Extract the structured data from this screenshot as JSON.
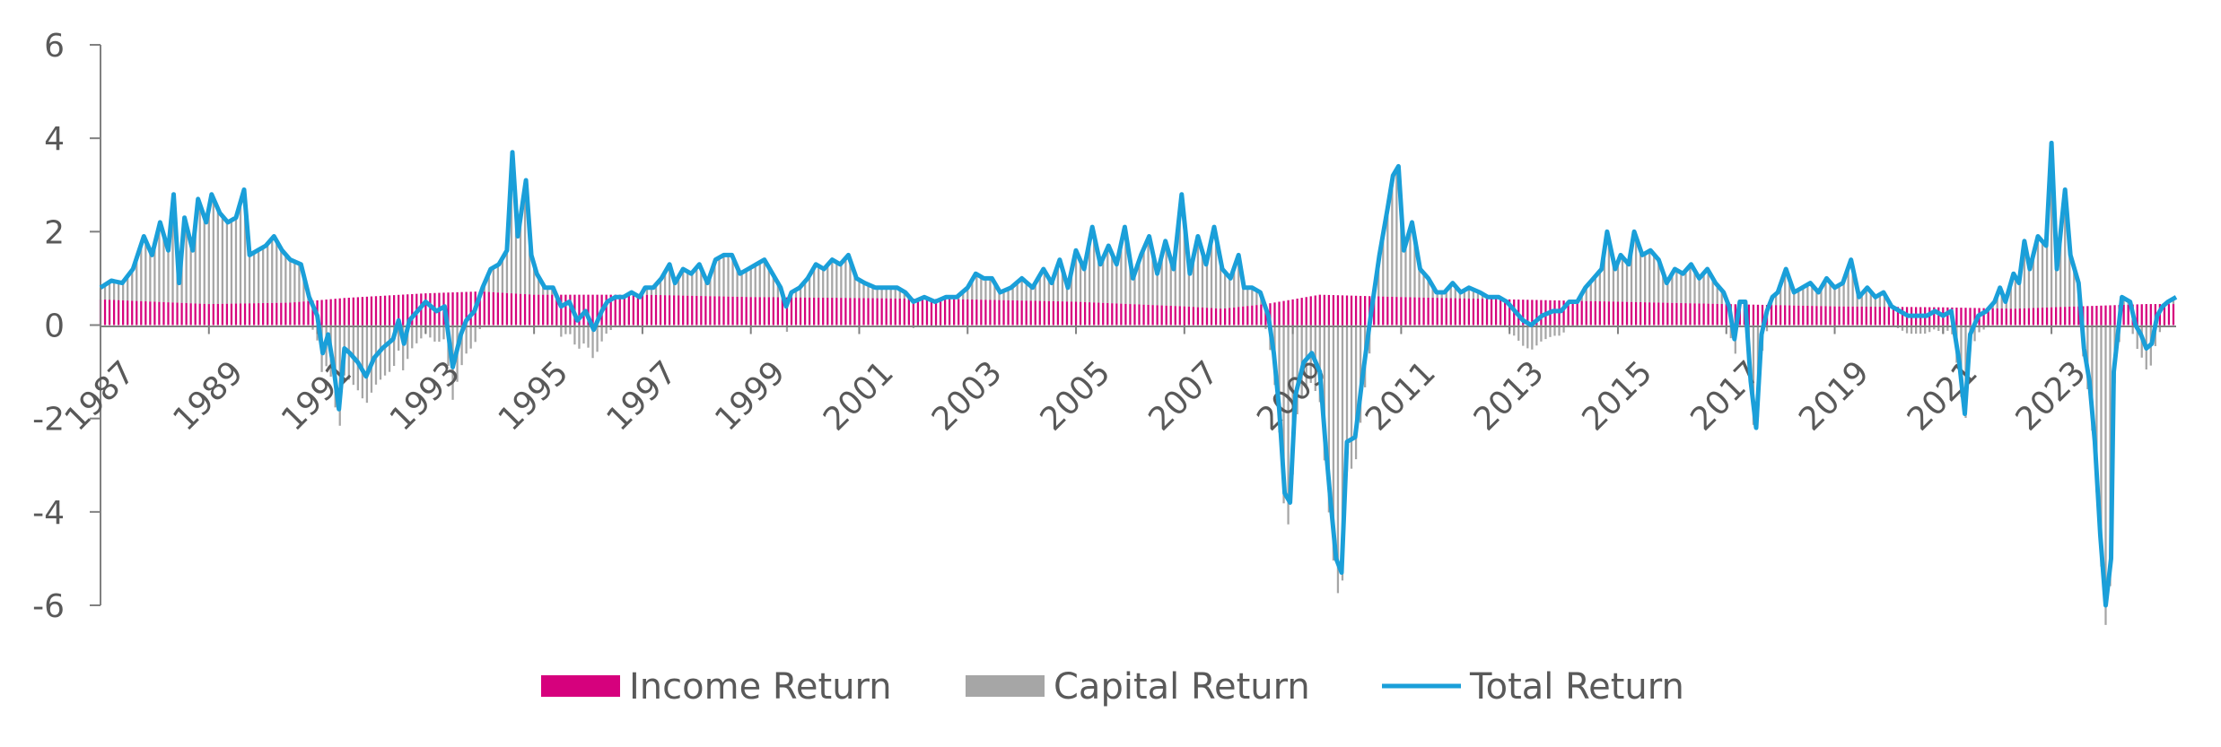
{
  "colors": {
    "income": "#d6017d",
    "capital": "#a6a6a6",
    "total": "#1a9fd9",
    "axis": "#808080",
    "text": "#595959"
  },
  "legend": {
    "income_label": "Income Return",
    "capital_label": "Capital Return",
    "total_label": "Total Return"
  },
  "chart_data": {
    "type": "bar",
    "subtype": "stacked bar (income + capital) with total return line, monthly",
    "title": "",
    "xlabel": "",
    "ylabel": "",
    "ylim": [
      -6,
      6
    ],
    "yticks": [
      "6",
      "4",
      "2",
      "0",
      "-2",
      "-4",
      "-6"
    ],
    "x_tick_labels": [
      "1987",
      "1989",
      "1991",
      "1993",
      "1995",
      "1997",
      "1999",
      "2001",
      "2003",
      "2005",
      "2007",
      "2009",
      "2011",
      "2013",
      "2015",
      "2017",
      "2019",
      "2021",
      "2023"
    ],
    "x_range_years": [
      1987,
      2024.75
    ],
    "grid": false,
    "legend_position": "bottom",
    "series": [
      {
        "name": "Income Return",
        "kind": "bar",
        "points": [
          [
            1987.0,
            0.55
          ],
          [
            1989.0,
            0.45
          ],
          [
            1990.5,
            0.48
          ],
          [
            1991.5,
            0.58
          ],
          [
            1993.0,
            0.68
          ],
          [
            1994.0,
            0.72
          ],
          [
            1995.0,
            0.65
          ],
          [
            1997.0,
            0.65
          ],
          [
            1999.0,
            0.6
          ],
          [
            2001.0,
            0.58
          ],
          [
            2003.0,
            0.55
          ],
          [
            2005.0,
            0.5
          ],
          [
            2007.0,
            0.4
          ],
          [
            2007.7,
            0.35
          ],
          [
            2008.5,
            0.45
          ],
          [
            2009.5,
            0.65
          ],
          [
            2011.0,
            0.6
          ],
          [
            2013.0,
            0.55
          ],
          [
            2015.0,
            0.5
          ],
          [
            2017.0,
            0.45
          ],
          [
            2019.0,
            0.4
          ],
          [
            2021.0,
            0.38
          ],
          [
            2022.3,
            0.35
          ],
          [
            2023.0,
            0.38
          ],
          [
            2024.75,
            0.45
          ]
        ]
      },
      {
        "name": "Capital Return",
        "kind": "bar",
        "derived_as": "Total Return minus Income Return"
      },
      {
        "name": "Total Return",
        "kind": "line",
        "points": [
          [
            1987.0,
            0.8
          ],
          [
            1987.2,
            0.95
          ],
          [
            1987.4,
            0.9
          ],
          [
            1987.6,
            1.2
          ],
          [
            1987.8,
            1.9
          ],
          [
            1987.95,
            1.5
          ],
          [
            1988.1,
            2.2
          ],
          [
            1988.25,
            1.6
          ],
          [
            1988.35,
            2.8
          ],
          [
            1988.45,
            0.9
          ],
          [
            1988.55,
            2.3
          ],
          [
            1988.7,
            1.6
          ],
          [
            1988.8,
            2.7
          ],
          [
            1988.95,
            2.2
          ],
          [
            1989.05,
            2.8
          ],
          [
            1989.2,
            2.4
          ],
          [
            1989.35,
            2.2
          ],
          [
            1989.5,
            2.3
          ],
          [
            1989.65,
            2.9
          ],
          [
            1989.75,
            1.5
          ],
          [
            1989.9,
            1.6
          ],
          [
            1990.05,
            1.7
          ],
          [
            1990.2,
            1.9
          ],
          [
            1990.35,
            1.6
          ],
          [
            1990.5,
            1.4
          ],
          [
            1990.7,
            1.3
          ],
          [
            1990.85,
            0.6
          ],
          [
            1991.0,
            0.2
          ],
          [
            1991.1,
            -0.6
          ],
          [
            1991.2,
            -0.2
          ],
          [
            1991.3,
            -0.9
          ],
          [
            1991.4,
            -1.8
          ],
          [
            1991.5,
            -0.5
          ],
          [
            1991.6,
            -0.6
          ],
          [
            1991.75,
            -0.8
          ],
          [
            1991.9,
            -1.1
          ],
          [
            1992.05,
            -0.7
          ],
          [
            1992.2,
            -0.5
          ],
          [
            1992.4,
            -0.3
          ],
          [
            1992.5,
            0.1
          ],
          [
            1992.6,
            -0.4
          ],
          [
            1992.7,
            0.1
          ],
          [
            1992.85,
            0.3
          ],
          [
            1993.0,
            0.5
          ],
          [
            1993.1,
            0.4
          ],
          [
            1993.2,
            0.3
          ],
          [
            1993.35,
            0.4
          ],
          [
            1993.5,
            -0.9
          ],
          [
            1993.65,
            -0.2
          ],
          [
            1993.75,
            0.1
          ],
          [
            1993.9,
            0.3
          ],
          [
            1994.05,
            0.8
          ],
          [
            1994.2,
            1.2
          ],
          [
            1994.35,
            1.3
          ],
          [
            1994.5,
            1.6
          ],
          [
            1994.6,
            3.7
          ],
          [
            1994.7,
            1.9
          ],
          [
            1994.85,
            3.1
          ],
          [
            1994.95,
            1.5
          ],
          [
            1995.05,
            1.1
          ],
          [
            1995.2,
            0.8
          ],
          [
            1995.35,
            0.8
          ],
          [
            1995.5,
            0.4
          ],
          [
            1995.65,
            0.5
          ],
          [
            1995.8,
            0.1
          ],
          [
            1995.95,
            0.3
          ],
          [
            1996.1,
            -0.1
          ],
          [
            1996.25,
            0.3
          ],
          [
            1996.35,
            0.5
          ],
          [
            1996.5,
            0.6
          ],
          [
            1996.65,
            0.6
          ],
          [
            1996.8,
            0.7
          ],
          [
            1996.95,
            0.6
          ],
          [
            1997.05,
            0.8
          ],
          [
            1997.2,
            0.8
          ],
          [
            1997.35,
            1.0
          ],
          [
            1997.5,
            1.3
          ],
          [
            1997.6,
            0.9
          ],
          [
            1997.75,
            1.2
          ],
          [
            1997.9,
            1.1
          ],
          [
            1998.05,
            1.3
          ],
          [
            1998.2,
            0.9
          ],
          [
            1998.35,
            1.4
          ],
          [
            1998.5,
            1.5
          ],
          [
            1998.65,
            1.5
          ],
          [
            1998.8,
            1.1
          ],
          [
            1998.95,
            1.2
          ],
          [
            1999.1,
            1.3
          ],
          [
            1999.25,
            1.4
          ],
          [
            1999.4,
            1.1
          ],
          [
            1999.55,
            0.8
          ],
          [
            1999.65,
            0.4
          ],
          [
            1999.75,
            0.7
          ],
          [
            1999.9,
            0.8
          ],
          [
            2000.05,
            1.0
          ],
          [
            2000.2,
            1.3
          ],
          [
            2000.35,
            1.2
          ],
          [
            2000.5,
            1.4
          ],
          [
            2000.65,
            1.3
          ],
          [
            2000.8,
            1.5
          ],
          [
            2000.95,
            1.0
          ],
          [
            2001.1,
            0.9
          ],
          [
            2001.3,
            0.8
          ],
          [
            2001.5,
            0.8
          ],
          [
            2001.7,
            0.8
          ],
          [
            2001.85,
            0.7
          ],
          [
            2002.0,
            0.5
          ],
          [
            2002.2,
            0.6
          ],
          [
            2002.4,
            0.5
          ],
          [
            2002.6,
            0.6
          ],
          [
            2002.8,
            0.6
          ],
          [
            2003.0,
            0.8
          ],
          [
            2003.15,
            1.1
          ],
          [
            2003.3,
            1.0
          ],
          [
            2003.45,
            1.0
          ],
          [
            2003.6,
            0.7
          ],
          [
            2003.8,
            0.8
          ],
          [
            2004.0,
            1.0
          ],
          [
            2004.2,
            0.8
          ],
          [
            2004.4,
            1.2
          ],
          [
            2004.55,
            0.9
          ],
          [
            2004.7,
            1.4
          ],
          [
            2004.85,
            0.8
          ],
          [
            2005.0,
            1.6
          ],
          [
            2005.15,
            1.2
          ],
          [
            2005.3,
            2.1
          ],
          [
            2005.45,
            1.3
          ],
          [
            2005.6,
            1.7
          ],
          [
            2005.75,
            1.3
          ],
          [
            2005.9,
            2.1
          ],
          [
            2006.05,
            1.0
          ],
          [
            2006.2,
            1.5
          ],
          [
            2006.35,
            1.9
          ],
          [
            2006.5,
            1.1
          ],
          [
            2006.65,
            1.8
          ],
          [
            2006.8,
            1.2
          ],
          [
            2006.95,
            2.8
          ],
          [
            2007.1,
            1.1
          ],
          [
            2007.25,
            1.9
          ],
          [
            2007.4,
            1.3
          ],
          [
            2007.55,
            2.1
          ],
          [
            2007.7,
            1.2
          ],
          [
            2007.85,
            1.0
          ],
          [
            2008.0,
            1.5
          ],
          [
            2008.1,
            0.8
          ],
          [
            2008.25,
            0.8
          ],
          [
            2008.4,
            0.7
          ],
          [
            2008.55,
            0.2
          ],
          [
            2008.65,
            -0.6
          ],
          [
            2008.75,
            -1.8
          ],
          [
            2008.85,
            -3.6
          ],
          [
            2008.95,
            -3.8
          ],
          [
            2009.05,
            -1.5
          ],
          [
            2009.2,
            -0.8
          ],
          [
            2009.35,
            -0.6
          ],
          [
            2009.5,
            -1.0
          ],
          [
            2009.6,
            -2.5
          ],
          [
            2009.7,
            -3.8
          ],
          [
            2009.8,
            -5.0
          ],
          [
            2009.9,
            -5.3
          ],
          [
            2010.0,
            -2.5
          ],
          [
            2010.15,
            -2.4
          ],
          [
            2010.3,
            -1.0
          ],
          [
            2010.45,
            0.3
          ],
          [
            2010.6,
            1.5
          ],
          [
            2010.75,
            2.5
          ],
          [
            2010.85,
            3.2
          ],
          [
            2010.95,
            3.4
          ],
          [
            2011.05,
            1.6
          ],
          [
            2011.2,
            2.2
          ],
          [
            2011.35,
            1.2
          ],
          [
            2011.5,
            1.0
          ],
          [
            2011.65,
            0.7
          ],
          [
            2011.8,
            0.7
          ],
          [
            2011.95,
            0.9
          ],
          [
            2012.1,
            0.7
          ],
          [
            2012.25,
            0.8
          ],
          [
            2012.45,
            0.7
          ],
          [
            2012.6,
            0.6
          ],
          [
            2012.8,
            0.6
          ],
          [
            2012.95,
            0.5
          ],
          [
            2013.1,
            0.3
          ],
          [
            2013.25,
            0.1
          ],
          [
            2013.4,
            0.0
          ],
          [
            2013.6,
            0.2
          ],
          [
            2013.8,
            0.3
          ],
          [
            2013.95,
            0.3
          ],
          [
            2014.1,
            0.5
          ],
          [
            2014.25,
            0.5
          ],
          [
            2014.4,
            0.8
          ],
          [
            2014.55,
            1.0
          ],
          [
            2014.7,
            1.2
          ],
          [
            2014.8,
            2.0
          ],
          [
            2014.95,
            1.2
          ],
          [
            2015.05,
            1.5
          ],
          [
            2015.2,
            1.3
          ],
          [
            2015.3,
            2.0
          ],
          [
            2015.45,
            1.5
          ],
          [
            2015.6,
            1.6
          ],
          [
            2015.75,
            1.4
          ],
          [
            2015.9,
            0.9
          ],
          [
            2016.05,
            1.2
          ],
          [
            2016.2,
            1.1
          ],
          [
            2016.35,
            1.3
          ],
          [
            2016.5,
            1.0
          ],
          [
            2016.65,
            1.2
          ],
          [
            2016.8,
            0.9
          ],
          [
            2016.95,
            0.7
          ],
          [
            2017.05,
            0.4
          ],
          [
            2017.15,
            -0.3
          ],
          [
            2017.25,
            0.5
          ],
          [
            2017.35,
            0.5
          ],
          [
            2017.45,
            -1.2
          ],
          [
            2017.55,
            -2.2
          ],
          [
            2017.65,
            -0.2
          ],
          [
            2017.75,
            0.3
          ],
          [
            2017.85,
            0.6
          ],
          [
            2017.95,
            0.7
          ],
          [
            2018.1,
            1.2
          ],
          [
            2018.25,
            0.7
          ],
          [
            2018.4,
            0.8
          ],
          [
            2018.55,
            0.9
          ],
          [
            2018.7,
            0.7
          ],
          [
            2018.85,
            1.0
          ],
          [
            2019.0,
            0.8
          ],
          [
            2019.15,
            0.9
          ],
          [
            2019.3,
            1.4
          ],
          [
            2019.45,
            0.6
          ],
          [
            2019.6,
            0.8
          ],
          [
            2019.75,
            0.6
          ],
          [
            2019.9,
            0.7
          ],
          [
            2020.05,
            0.4
          ],
          [
            2020.2,
            0.3
          ],
          [
            2020.35,
            0.2
          ],
          [
            2020.5,
            0.2
          ],
          [
            2020.7,
            0.2
          ],
          [
            2020.85,
            0.3
          ],
          [
            2021.0,
            0.2
          ],
          [
            2021.15,
            0.3
          ],
          [
            2021.3,
            -0.8
          ],
          [
            2021.4,
            -1.9
          ],
          [
            2021.5,
            -0.2
          ],
          [
            2021.65,
            0.2
          ],
          [
            2021.8,
            0.3
          ],
          [
            2021.95,
            0.5
          ],
          [
            2022.05,
            0.8
          ],
          [
            2022.15,
            0.5
          ],
          [
            2022.3,
            1.1
          ],
          [
            2022.4,
            0.9
          ],
          [
            2022.5,
            1.8
          ],
          [
            2022.6,
            1.2
          ],
          [
            2022.75,
            1.9
          ],
          [
            2022.9,
            1.7
          ],
          [
            2023.0,
            3.9
          ],
          [
            2023.1,
            1.2
          ],
          [
            2023.25,
            2.9
          ],
          [
            2023.35,
            1.5
          ],
          [
            2023.5,
            0.9
          ],
          [
            2023.6,
            -0.5
          ],
          [
            2023.7,
            -1.2
          ],
          [
            2023.8,
            -2.5
          ],
          [
            2023.9,
            -4.5
          ],
          [
            2024.0,
            -6.0
          ],
          [
            2024.1,
            -5.0
          ],
          [
            2024.15,
            -1.0
          ],
          [
            2024.3,
            0.6
          ],
          [
            2024.45,
            0.5
          ],
          [
            2024.55,
            0.0
          ],
          [
            2024.65,
            -0.2
          ],
          [
            2024.75,
            -0.5
          ],
          [
            2024.85,
            -0.4
          ],
          [
            2024.95,
            0.2
          ],
          [
            2025.05,
            0.4
          ],
          [
            2025.15,
            0.5
          ],
          [
            2025.3,
            0.6
          ]
        ]
      }
    ]
  }
}
